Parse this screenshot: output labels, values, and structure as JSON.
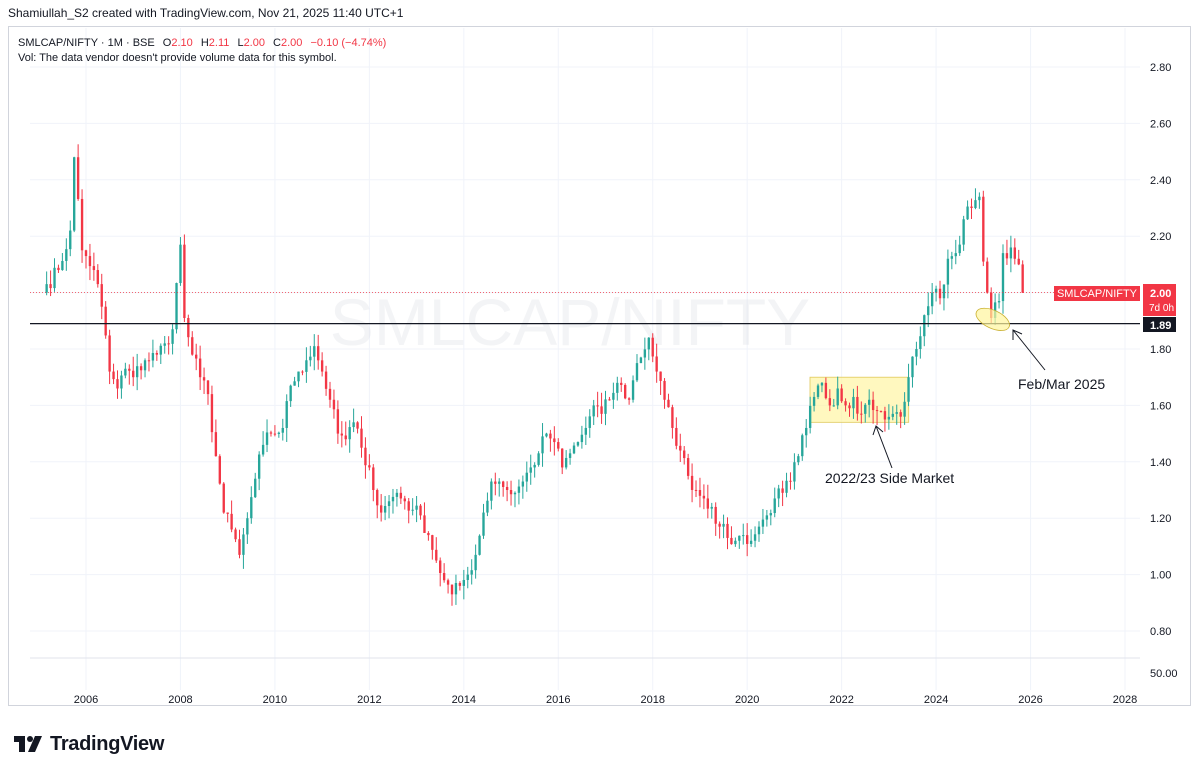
{
  "header": {
    "created_by": "Shamiullah_S2 created with TradingView.com, Nov 21, 2025 11:40 UTC+1"
  },
  "legend": {
    "symbol": "SMLCAP/NIFTY · 1M · BSE",
    "open_label": "O",
    "open": "2.10",
    "high_label": "H",
    "high": "2.11",
    "low_label": "L",
    "low": "2.00",
    "close_label": "C",
    "close": "2.00",
    "change": "−0.10 (−4.74%)",
    "vol_note": "Vol: The data vendor doesn't provide volume data for this symbol."
  },
  "watermark": "SMLCAP/NIFTY",
  "price_scale": {
    "ticks": [
      "2.80",
      "2.60",
      "2.40",
      "2.20",
      "1.80",
      "1.60",
      "1.40",
      "1.20",
      "1.00",
      "0.80"
    ],
    "volume_tick": "50.00",
    "current_symbol_tag": "SMLCAP/NIFTY",
    "current_price": "2.00",
    "countdown": "7d 0h",
    "hline_price_label": "1.89"
  },
  "time_scale": {
    "ticks": [
      "2006",
      "2008",
      "2010",
      "2012",
      "2014",
      "2016",
      "2018",
      "2020",
      "2022",
      "2024",
      "2026",
      "2028"
    ]
  },
  "annotations": {
    "side_market": "2022/23 Side Market",
    "feb_mar": "Feb/Mar 2025"
  },
  "footer": {
    "brand": "TradingView"
  },
  "colors": {
    "up": "#26a69a",
    "down": "#f23645",
    "hline": "#131722",
    "highlight": "#fff59d",
    "last_price": "#f23645"
  },
  "chart_data": {
    "type": "candlestick",
    "symbol": "SMLCAP/NIFTY",
    "interval": "1M",
    "x_range": [
      2005.0,
      2028.0
    ],
    "y_range": [
      0.7,
      2.9
    ],
    "horizontal_line": 1.89,
    "last_close": 2.0,
    "side_market_box": {
      "x": [
        2021.33,
        2023.42
      ],
      "y": [
        1.54,
        1.7
      ]
    },
    "closes": [
      [
        2005.17,
        2.03
      ],
      [
        2005.42,
        2.08
      ],
      [
        2005.67,
        2.22
      ],
      [
        2005.75,
        2.48
      ],
      [
        2005.92,
        2.15
      ],
      [
        2006.17,
        2.08
      ],
      [
        2006.33,
        1.95
      ],
      [
        2006.5,
        1.72
      ],
      [
        2006.67,
        1.66
      ],
      [
        2006.83,
        1.73
      ],
      [
        2007.0,
        1.7
      ],
      [
        2007.25,
        1.76
      ],
      [
        2007.5,
        1.78
      ],
      [
        2007.67,
        1.82
      ],
      [
        2007.83,
        1.87
      ],
      [
        2008.0,
        2.17
      ],
      [
        2008.08,
        1.91
      ],
      [
        2008.25,
        1.78
      ],
      [
        2008.42,
        1.7
      ],
      [
        2008.58,
        1.64
      ],
      [
        2008.75,
        1.42
      ],
      [
        2008.92,
        1.22
      ],
      [
        2009.08,
        1.16
      ],
      [
        2009.25,
        1.07
      ],
      [
        2009.42,
        1.2
      ],
      [
        2009.58,
        1.34
      ],
      [
        2009.75,
        1.46
      ],
      [
        2009.92,
        1.5
      ],
      [
        2010.17,
        1.52
      ],
      [
        2010.33,
        1.67
      ],
      [
        2010.5,
        1.72
      ],
      [
        2010.67,
        1.76
      ],
      [
        2010.83,
        1.81
      ],
      [
        2011.0,
        1.72
      ],
      [
        2011.17,
        1.62
      ],
      [
        2011.33,
        1.5
      ],
      [
        2011.5,
        1.48
      ],
      [
        2011.67,
        1.54
      ],
      [
        2011.83,
        1.45
      ],
      [
        2012.0,
        1.38
      ],
      [
        2012.08,
        1.3
      ],
      [
        2012.25,
        1.22
      ],
      [
        2012.42,
        1.26
      ],
      [
        2012.58,
        1.29
      ],
      [
        2012.75,
        1.26
      ],
      [
        2012.92,
        1.23
      ],
      [
        2013.08,
        1.21
      ],
      [
        2013.25,
        1.14
      ],
      [
        2013.42,
        1.05
      ],
      [
        2013.58,
        0.98
      ],
      [
        2013.75,
        0.93
      ],
      [
        2013.92,
        0.96
      ],
      [
        2014.08,
        1.0
      ],
      [
        2014.25,
        1.07
      ],
      [
        2014.42,
        1.22
      ],
      [
        2014.58,
        1.33
      ],
      [
        2014.75,
        1.33
      ],
      [
        2014.92,
        1.3
      ],
      [
        2015.08,
        1.29
      ],
      [
        2015.25,
        1.33
      ],
      [
        2015.42,
        1.38
      ],
      [
        2015.58,
        1.43
      ],
      [
        2015.75,
        1.5
      ],
      [
        2015.92,
        1.47
      ],
      [
        2016.08,
        1.38
      ],
      [
        2016.25,
        1.43
      ],
      [
        2016.42,
        1.47
      ],
      [
        2016.58,
        1.52
      ],
      [
        2016.75,
        1.6
      ],
      [
        2016.92,
        1.57
      ],
      [
        2017.08,
        1.62
      ],
      [
        2017.25,
        1.68
      ],
      [
        2017.5,
        1.62
      ],
      [
        2017.67,
        1.75
      ],
      [
        2017.92,
        1.84
      ],
      [
        2018.08,
        1.72
      ],
      [
        2018.25,
        1.62
      ],
      [
        2018.42,
        1.52
      ],
      [
        2018.58,
        1.44
      ],
      [
        2018.75,
        1.35
      ],
      [
        2018.92,
        1.3
      ],
      [
        2019.08,
        1.27
      ],
      [
        2019.25,
        1.24
      ],
      [
        2019.42,
        1.17
      ],
      [
        2019.58,
        1.13
      ],
      [
        2019.75,
        1.12
      ],
      [
        2019.92,
        1.14
      ],
      [
        2020.08,
        1.12
      ],
      [
        2020.25,
        1.17
      ],
      [
        2020.42,
        1.21
      ],
      [
        2020.58,
        1.27
      ],
      [
        2020.75,
        1.29
      ],
      [
        2020.92,
        1.33
      ],
      [
        2021.08,
        1.42
      ],
      [
        2021.25,
        1.52
      ],
      [
        2021.42,
        1.63
      ],
      [
        2021.58,
        1.68
      ],
      [
        2021.75,
        1.6
      ],
      [
        2021.92,
        1.66
      ],
      [
        2022.08,
        1.6
      ],
      [
        2022.25,
        1.63
      ],
      [
        2022.42,
        1.57
      ],
      [
        2022.58,
        1.62
      ],
      [
        2022.75,
        1.58
      ],
      [
        2022.92,
        1.55
      ],
      [
        2023.08,
        1.57
      ],
      [
        2023.25,
        1.56
      ],
      [
        2023.42,
        1.7
      ],
      [
        2023.58,
        1.8
      ],
      [
        2023.75,
        1.92
      ],
      [
        2023.92,
        2.0
      ],
      [
        2024.08,
        1.98
      ],
      [
        2024.25,
        2.12
      ],
      [
        2024.42,
        2.14
      ],
      [
        2024.58,
        2.26
      ],
      [
        2024.75,
        2.3
      ],
      [
        2024.92,
        2.34
      ],
      [
        2025.0,
        2.11
      ],
      [
        2025.08,
        2.0
      ],
      [
        2025.17,
        1.91
      ],
      [
        2025.33,
        1.97
      ],
      [
        2025.42,
        2.14
      ],
      [
        2025.58,
        2.16
      ],
      [
        2025.67,
        2.12
      ],
      [
        2025.75,
        2.1
      ],
      [
        2025.83,
        2.0
      ]
    ]
  }
}
